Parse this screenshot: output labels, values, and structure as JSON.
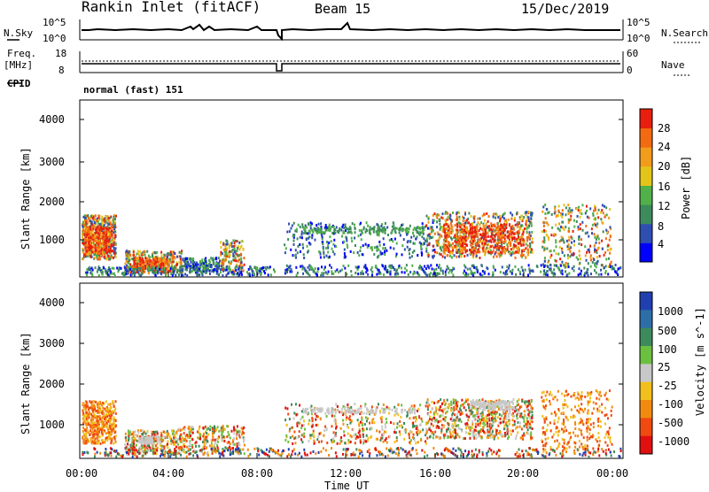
{
  "header": {
    "station": "Rankin Inlet (fitACF)",
    "beam": "Beam 15",
    "date": "15/Dec/2019"
  },
  "noise_panel": {
    "left_label": "N.Sky",
    "right_label": "N.Search",
    "left_ticks": [
      "10^5",
      "10^0"
    ],
    "right_ticks": [
      "10^5",
      "10^0"
    ]
  },
  "freq_panel": {
    "left_label_1": "Freq.",
    "left_label_2": "[MHz]",
    "right_label": "Nave",
    "left_ticks": [
      "18",
      "8"
    ],
    "right_ticks": [
      "60",
      "0"
    ]
  },
  "cpid": {
    "label": "CPID",
    "value": "normal (fast) 151"
  },
  "chart_data": [
    {
      "type": "heatmap",
      "name": "Power",
      "ylabel": "Slant Range [km]",
      "xlabel": "Time UT",
      "ylim": [
        180,
        4600
      ],
      "yticks": [
        1000,
        2000,
        3000,
        4000
      ],
      "x_ticks": [
        "00:00",
        "04:00",
        "08:00",
        "12:00",
        "16:00",
        "20:00",
        "00:00"
      ],
      "colorbar": {
        "label": "Power [dB]",
        "ticks": [
          "4",
          "8",
          "12",
          "16",
          "20",
          "24",
          "28"
        ],
        "colors": [
          "#0000ff",
          "#2e4fb0",
          "#3d8a5c",
          "#52b04a",
          "#e3c51a",
          "#f29c1c",
          "#f26b10",
          "#e81e0e"
        ]
      }
    },
    {
      "type": "heatmap",
      "name": "Velocity",
      "ylabel": "Slant Range [km]",
      "xlabel": "Time UT",
      "ylim": [
        180,
        4600
      ],
      "yticks": [
        1000,
        2000,
        3000,
        4000
      ],
      "x_ticks": [
        "00:00",
        "04:00",
        "08:00",
        "12:00",
        "16:00",
        "20:00",
        "00:00"
      ],
      "colorbar": {
        "label": "Velocity [m s^-1]",
        "ticks": [
          "1000",
          "500",
          "100",
          "25",
          "-25",
          "-100",
          "-500",
          "-1000"
        ],
        "colors": [
          "#2040b0",
          "#2e6ea8",
          "#3d8a5c",
          "#6cc040",
          "#c8c8c8",
          "#f2c01c",
          "#f28a10",
          "#f04a10",
          "#e01010"
        ]
      }
    }
  ]
}
